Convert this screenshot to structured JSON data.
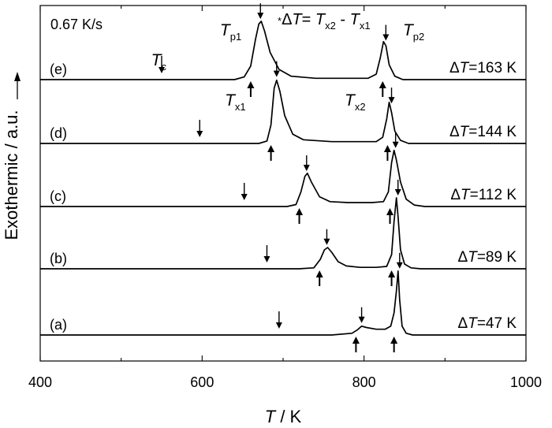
{
  "chart_data": {
    "type": "line",
    "title": "",
    "rate_label": "0.67 K/s",
    "xlabel": {
      "italic": "T",
      "rest": " / K"
    },
    "ylabel": "Exothermic / a.u.",
    "xlim": [
      400,
      1000
    ],
    "xticks": [
      400,
      600,
      800,
      1000
    ],
    "formula": {
      "star": "*",
      "parts": [
        {
          "t": "Δ",
          "i": false
        },
        {
          "t": "T",
          "i": true
        },
        {
          "t": "= ",
          "i": false
        },
        {
          "t": "T",
          "i": true
        },
        {
          "t": "x2",
          "sub": true
        },
        {
          "t": " - ",
          "i": false
        },
        {
          "t": "T",
          "i": true
        },
        {
          "t": "x1",
          "sub": true
        }
      ]
    },
    "point_labels": [
      {
        "name": "Tp1",
        "main": "T",
        "sub": "p1",
        "x": 622,
        "curve": 4,
        "side": "above"
      },
      {
        "name": "Tp2",
        "main": "T",
        "sub": "p2",
        "x": 848,
        "curve": 4,
        "side": "above"
      },
      {
        "name": "Tc",
        "main": "T",
        "sub": "c",
        "x": 537,
        "curve": 4,
        "side": "above"
      },
      {
        "name": "Tx1",
        "main": "T",
        "sub": "x1",
        "x": 628,
        "curve": 3,
        "side": "above"
      },
      {
        "name": "Tx2",
        "main": "T",
        "sub": "x2",
        "x": 776,
        "curve": 3,
        "side": "above"
      }
    ],
    "series": [
      {
        "name": "(a)",
        "delta_label": "ΔT=47 K",
        "delta_value": 47,
        "Tc": 695,
        "Tx1": 790,
        "Tp1": 797,
        "Tx2": 837,
        "Tp2": 842,
        "points": [
          [
            400,
            0
          ],
          [
            700,
            0
          ],
          [
            760,
            0
          ],
          [
            785,
            0.04
          ],
          [
            792,
            0.12
          ],
          [
            797,
            0.2
          ],
          [
            803,
            0.17
          ],
          [
            815,
            0.13
          ],
          [
            826,
            0.13
          ],
          [
            833,
            0.2
          ],
          [
            837,
            0.5
          ],
          [
            840,
            1.0
          ],
          [
            842,
            1.45
          ],
          [
            844,
            0.8
          ],
          [
            847,
            0.2
          ],
          [
            852,
            0.04
          ],
          [
            860,
            0
          ],
          [
            1000,
            0
          ]
        ]
      },
      {
        "name": "(b)",
        "delta_label": "ΔT=89 K",
        "delta_value": 89,
        "Tc": 680,
        "Tx1": 745,
        "Tp1": 754,
        "Tx2": 834,
        "Tp2": 840,
        "points": [
          [
            400,
            0
          ],
          [
            720,
            0
          ],
          [
            738,
            0.02
          ],
          [
            746,
            0.2
          ],
          [
            751,
            0.4
          ],
          [
            755,
            0.45
          ],
          [
            760,
            0.35
          ],
          [
            768,
            0.15
          ],
          [
            778,
            0.06
          ],
          [
            795,
            0.03
          ],
          [
            815,
            0.03
          ],
          [
            828,
            0.05
          ],
          [
            834,
            0.3
          ],
          [
            837,
            1.0
          ],
          [
            840,
            1.5
          ],
          [
            842,
            1.1
          ],
          [
            845,
            0.4
          ],
          [
            850,
            0.1
          ],
          [
            858,
            0.02
          ],
          [
            870,
            0
          ],
          [
            1000,
            0
          ]
        ]
      },
      {
        "name": "(c)",
        "delta_label": "ΔT=112 K",
        "delta_value": 112,
        "Tc": 652,
        "Tx1": 720,
        "Tp1": 729,
        "Tx2": 832,
        "Tp2": 837,
        "points": [
          [
            400,
            0
          ],
          [
            705,
            0
          ],
          [
            716,
            0.04
          ],
          [
            722,
            0.3
          ],
          [
            727,
            0.62
          ],
          [
            730,
            0.68
          ],
          [
            735,
            0.5
          ],
          [
            745,
            0.2
          ],
          [
            758,
            0.1
          ],
          [
            780,
            0.08
          ],
          [
            810,
            0.08
          ],
          [
            824,
            0.1
          ],
          [
            830,
            0.3
          ],
          [
            834,
            0.9
          ],
          [
            837,
            1.15
          ],
          [
            840,
            0.95
          ],
          [
            845,
            0.5
          ],
          [
            852,
            0.15
          ],
          [
            862,
            0.03
          ],
          [
            875,
            0
          ],
          [
            1000,
            0
          ]
        ]
      },
      {
        "name": "(d)",
        "delta_label": "ΔT=144 K",
        "delta_value": 144,
        "Tc": 597,
        "Tx1": 685,
        "Tp1": 692,
        "Tx2": 829,
        "Tp2": 832,
        "points": [
          [
            400,
            0
          ],
          [
            670,
            0
          ],
          [
            680,
            0.04
          ],
          [
            685,
            0.3
          ],
          [
            689,
            0.9
          ],
          [
            692,
            1.03
          ],
          [
            696,
            0.85
          ],
          [
            702,
            0.45
          ],
          [
            712,
            0.15
          ],
          [
            725,
            0.06
          ],
          [
            760,
            0.03
          ],
          [
            815,
            0.03
          ],
          [
            823,
            0.1
          ],
          [
            828,
            0.4
          ],
          [
            831,
            0.67
          ],
          [
            834,
            0.5
          ],
          [
            838,
            0.2
          ],
          [
            845,
            0.05
          ],
          [
            855,
            0
          ],
          [
            1000,
            0
          ]
        ]
      },
      {
        "name": "(e)",
        "delta_label": "ΔT=163 K",
        "delta_value": 163,
        "Tc": 550,
        "Tx1": 660,
        "Tp1": 672,
        "Tx2": 823,
        "Tp2": 825,
        "points": [
          [
            400,
            0
          ],
          [
            640,
            0
          ],
          [
            652,
            0.04
          ],
          [
            660,
            0.2
          ],
          [
            666,
            0.6
          ],
          [
            670,
            0.82
          ],
          [
            673,
            0.86
          ],
          [
            677,
            0.72
          ],
          [
            684,
            0.4
          ],
          [
            695,
            0.15
          ],
          [
            710,
            0.05
          ],
          [
            740,
            0.02
          ],
          [
            805,
            0.02
          ],
          [
            815,
            0.08
          ],
          [
            820,
            0.32
          ],
          [
            824,
            0.56
          ],
          [
            827,
            0.5
          ],
          [
            831,
            0.22
          ],
          [
            838,
            0.05
          ],
          [
            848,
            0
          ],
          [
            1000,
            0
          ]
        ]
      }
    ]
  }
}
